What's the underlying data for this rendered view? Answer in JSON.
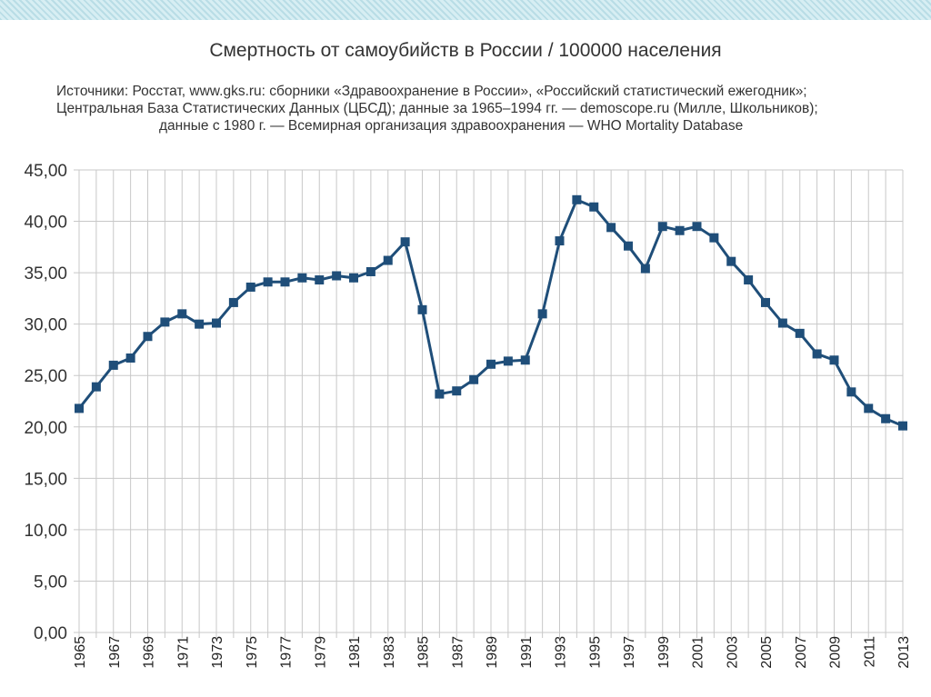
{
  "header": {
    "title": "Смертность от самоубийств в России / 100000 населения",
    "source_line1": "Источники: Росстат, www.gks.ru: сборники «Здравоохранение в России», «Российский статистический ежегодник»;",
    "source_line2": "Центральная База Статистических Данных (ЦБСД);  данные за 1965–1994 гг. — demoscope.ru (Милле, Школьников);",
    "source_line3": "данные с 1980 г. — Всемирная организация здравоохранения — WHO Mortality Database"
  },
  "chart_data": {
    "type": "line",
    "title": "Смертность от самоубийств в России / 100000 населения",
    "xlabel": "",
    "ylabel": "",
    "x": [
      1965,
      1966,
      1967,
      1968,
      1969,
      1970,
      1971,
      1972,
      1973,
      1974,
      1975,
      1976,
      1977,
      1978,
      1979,
      1980,
      1981,
      1982,
      1983,
      1984,
      1985,
      1986,
      1987,
      1988,
      1989,
      1990,
      1991,
      1992,
      1993,
      1994,
      1995,
      1996,
      1997,
      1998,
      1999,
      2000,
      2001,
      2002,
      2003,
      2004,
      2005,
      2006,
      2007,
      2008,
      2009,
      2010,
      2011,
      2012,
      2013
    ],
    "x_tick_labels": [
      "1965",
      "1967",
      "1969",
      "1971",
      "1973",
      "1975",
      "1977",
      "1979",
      "1981",
      "1983",
      "1985",
      "1987",
      "1989",
      "1991",
      "1993",
      "1995",
      "1997",
      "1999",
      "2001",
      "2003",
      "2005",
      "2007",
      "2009",
      "2011",
      "2013"
    ],
    "series": [
      {
        "values": [
          21.8,
          23.9,
          26.0,
          26.7,
          28.8,
          30.2,
          31.0,
          30.0,
          30.1,
          32.1,
          33.6,
          34.1,
          34.1,
          34.5,
          34.3,
          34.7,
          34.5,
          35.1,
          36.2,
          38.0,
          31.4,
          23.2,
          23.5,
          24.6,
          26.1,
          26.4,
          26.5,
          31.0,
          38.1,
          42.1,
          41.4,
          39.4,
          37.6,
          35.4,
          39.5,
          39.1,
          39.5,
          38.4,
          36.1,
          34.3,
          32.1,
          30.1,
          29.1,
          27.1,
          26.5,
          23.4,
          21.8,
          20.8,
          20.1
        ],
        "color": "#1f4e79",
        "marker": "square"
      }
    ],
    "ylim": [
      0,
      45
    ],
    "y_ticks": [
      "0,00",
      "5,00",
      "10,00",
      "15,00",
      "20,00",
      "25,00",
      "30,00",
      "35,00",
      "40,00",
      "45,00"
    ],
    "grid": true,
    "legend": "none"
  }
}
